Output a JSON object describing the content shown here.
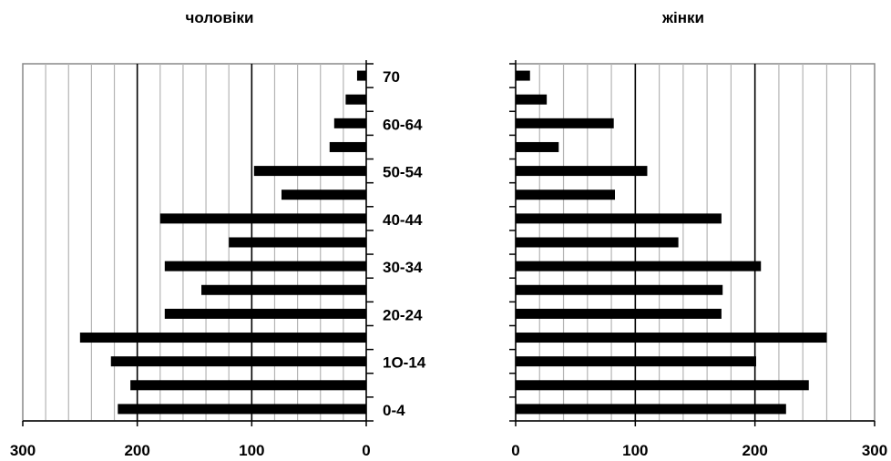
{
  "chart_data": [
    {
      "type": "bar",
      "orientation": "horizontal",
      "title": "чоловіки",
      "x_direction": "reversed",
      "xlim": [
        0,
        300
      ],
      "xticks": [
        "0",
        "100",
        "200",
        "300"
      ],
      "grid": true,
      "categories_bottom_to_top": [
        "0-4",
        "5-9",
        "10-14",
        "15-19",
        "20-24",
        "25-29",
        "30-34",
        "35-39",
        "40-44",
        "45-49",
        "50-54",
        "55-59",
        "60-64",
        "65-69",
        "70"
      ],
      "category_labels_shown": [
        {
          "index": 0,
          "text": "0-4"
        },
        {
          "index": 2,
          "text": "1О-14"
        },
        {
          "index": 4,
          "text": "20-24"
        },
        {
          "index": 6,
          "text": "30-34"
        },
        {
          "index": 8,
          "text": "40-44"
        },
        {
          "index": 10,
          "text": "50-54"
        },
        {
          "index": 12,
          "text": "60-64"
        },
        {
          "index": 14,
          "text": "70"
        }
      ],
      "values": [
        217,
        206,
        223,
        250,
        176,
        144,
        176,
        120,
        180,
        74,
        98,
        32,
        28,
        18,
        8
      ],
      "bar_color": "#000000"
    },
    {
      "type": "bar",
      "orientation": "horizontal",
      "title": "жінки",
      "x_direction": "normal",
      "xlim": [
        0,
        300
      ],
      "xticks": [
        "0",
        "100",
        "200",
        "300"
      ],
      "grid": true,
      "categories_bottom_to_top": [
        "0-4",
        "5-9",
        "10-14",
        "15-19",
        "20-24",
        "25-29",
        "30-34",
        "35-39",
        "40-44",
        "45-49",
        "50-54",
        "55-59",
        "60-64",
        "65-69",
        "70"
      ],
      "values": [
        226,
        245,
        201,
        260,
        172,
        173,
        205,
        136,
        172,
        83,
        110,
        36,
        82,
        26,
        12
      ],
      "bar_color": "#000000"
    }
  ]
}
